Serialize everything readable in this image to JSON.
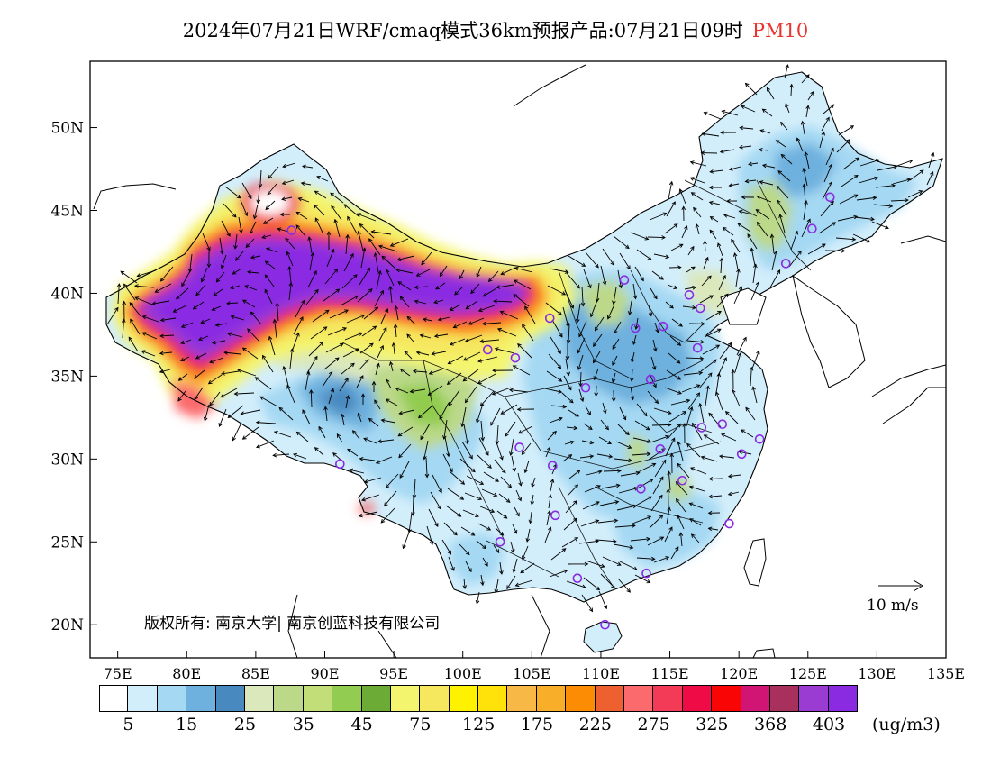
{
  "title": {
    "main": "2024年07月21日WRF/cmaq模式36km预报产品:07月21日09时",
    "species": "PM10"
  },
  "map": {
    "lat_labels": [
      "50N",
      "45N",
      "40N",
      "35N",
      "30N",
      "25N",
      "20N"
    ],
    "lon_labels": [
      "75E",
      "80E",
      "85E",
      "90E",
      "95E",
      "100E",
      "105E",
      "110E",
      "115E",
      "120E",
      "125E",
      "130E",
      "135E"
    ],
    "copyright": "版权所有: 南京大学| 南京创蓝科技有限公司",
    "vector_scale": "10 m/s",
    "station_marker_color": "#8a2be2",
    "stations": [
      {
        "lon": 87.6,
        "lat": 43.8
      },
      {
        "lon": 91.1,
        "lat": 29.7
      },
      {
        "lon": 101.8,
        "lat": 36.6
      },
      {
        "lon": 103.8,
        "lat": 36.1
      },
      {
        "lon": 106.3,
        "lat": 38.5
      },
      {
        "lon": 104.1,
        "lat": 30.7
      },
      {
        "lon": 106.5,
        "lat": 29.6
      },
      {
        "lon": 106.7,
        "lat": 26.6
      },
      {
        "lon": 102.7,
        "lat": 25.0
      },
      {
        "lon": 108.3,
        "lat": 22.8
      },
      {
        "lon": 110.3,
        "lat": 20.0
      },
      {
        "lon": 113.3,
        "lat": 23.1
      },
      {
        "lon": 108.9,
        "lat": 34.3
      },
      {
        "lon": 111.7,
        "lat": 40.8
      },
      {
        "lon": 112.5,
        "lat": 37.9
      },
      {
        "lon": 114.5,
        "lat": 38.0
      },
      {
        "lon": 116.4,
        "lat": 39.9
      },
      {
        "lon": 117.2,
        "lat": 39.1
      },
      {
        "lon": 117.0,
        "lat": 36.7
      },
      {
        "lon": 113.6,
        "lat": 34.8
      },
      {
        "lon": 114.3,
        "lat": 30.6
      },
      {
        "lon": 112.9,
        "lat": 28.2
      },
      {
        "lon": 115.9,
        "lat": 28.7
      },
      {
        "lon": 117.3,
        "lat": 31.9
      },
      {
        "lon": 118.8,
        "lat": 32.1
      },
      {
        "lon": 120.2,
        "lat": 30.3
      },
      {
        "lon": 121.5,
        "lat": 31.2
      },
      {
        "lon": 119.3,
        "lat": 26.1
      },
      {
        "lon": 123.4,
        "lat": 41.8
      },
      {
        "lon": 125.3,
        "lat": 43.9
      },
      {
        "lon": 126.6,
        "lat": 45.8
      }
    ]
  },
  "colorbar": {
    "colors": [
      "#ffffff",
      "#d3eefb",
      "#a4d8f3",
      "#6eb1de",
      "#4889c0",
      "#dbe8bc",
      "#bcd98a",
      "#c2de78",
      "#92cc50",
      "#6dab37",
      "#f4f56e",
      "#f5e75e",
      "#fff200",
      "#ffe20a",
      "#f7b846",
      "#f9ae2a",
      "#fb8c03",
      "#ef6030",
      "#fb6a6d",
      "#f33a57",
      "#ef0c46",
      "#fa0505",
      "#d01575",
      "#a7305c",
      "#9a3cd1",
      "#8a2be2"
    ],
    "labels": [
      "5",
      "15",
      "25",
      "35",
      "45",
      "75",
      "125",
      "175",
      "225",
      "275",
      "325",
      "368",
      "403"
    ],
    "unit": "(ug/m3)"
  }
}
